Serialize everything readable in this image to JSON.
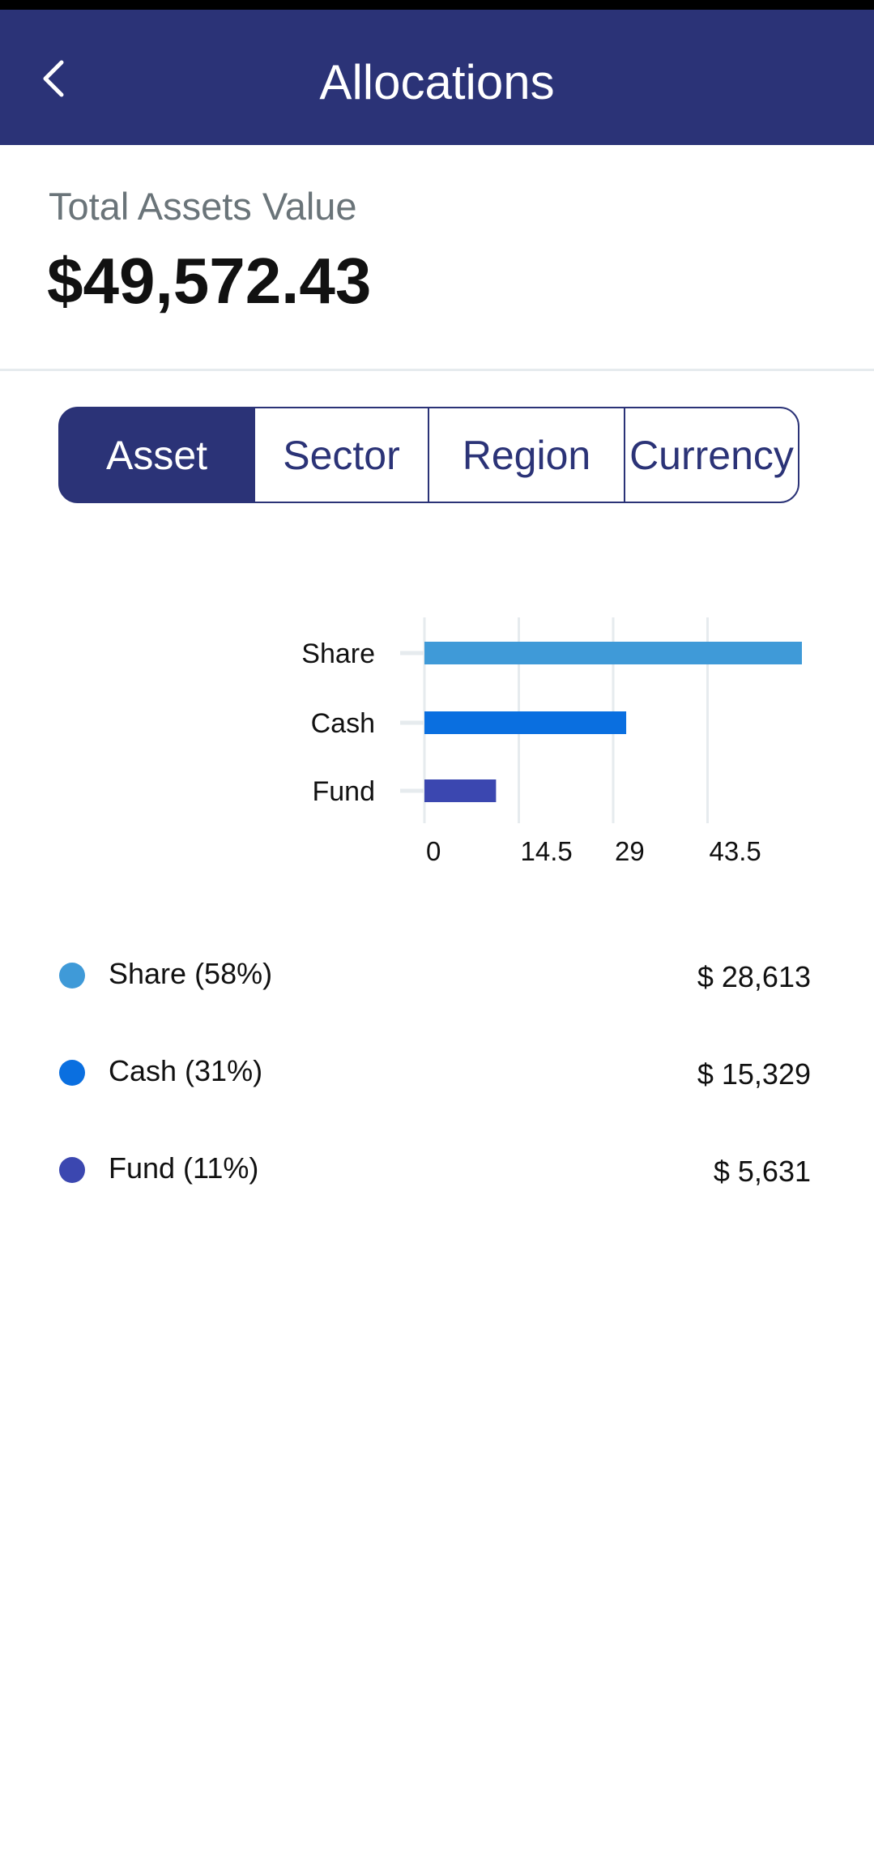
{
  "app_bar": {
    "title": "Allocations",
    "back_icon": "chevron-left-icon"
  },
  "summary": {
    "label": "Total Assets Value",
    "value": "$49,572.43"
  },
  "tabs": [
    {
      "label": "Asset",
      "active": true
    },
    {
      "label": "Sector",
      "active": false
    },
    {
      "label": "Region",
      "active": false
    },
    {
      "label": "Currency",
      "active": false
    }
  ],
  "chart_data": {
    "type": "bar",
    "orientation": "horizontal",
    "categories": [
      "Share",
      "Cash",
      "Fund"
    ],
    "values": [
      58,
      31,
      11
    ],
    "colors": [
      "#3f9ad8",
      "#0a6fe0",
      "#3b47b0"
    ],
    "xticks": [
      "0",
      "14.5",
      "29",
      "43.5"
    ],
    "xlim": [
      0,
      58
    ],
    "grid": true
  },
  "legend": [
    {
      "label": "Share (58%)",
      "value": "$ 28,613",
      "color": "#3f9ad8"
    },
    {
      "label": "Cash (31%)",
      "value": "$ 15,329",
      "color": "#0a6fe0"
    },
    {
      "label": "Fund (11%)",
      "value": "$ 5,631",
      "color": "#3b47b0"
    }
  ]
}
